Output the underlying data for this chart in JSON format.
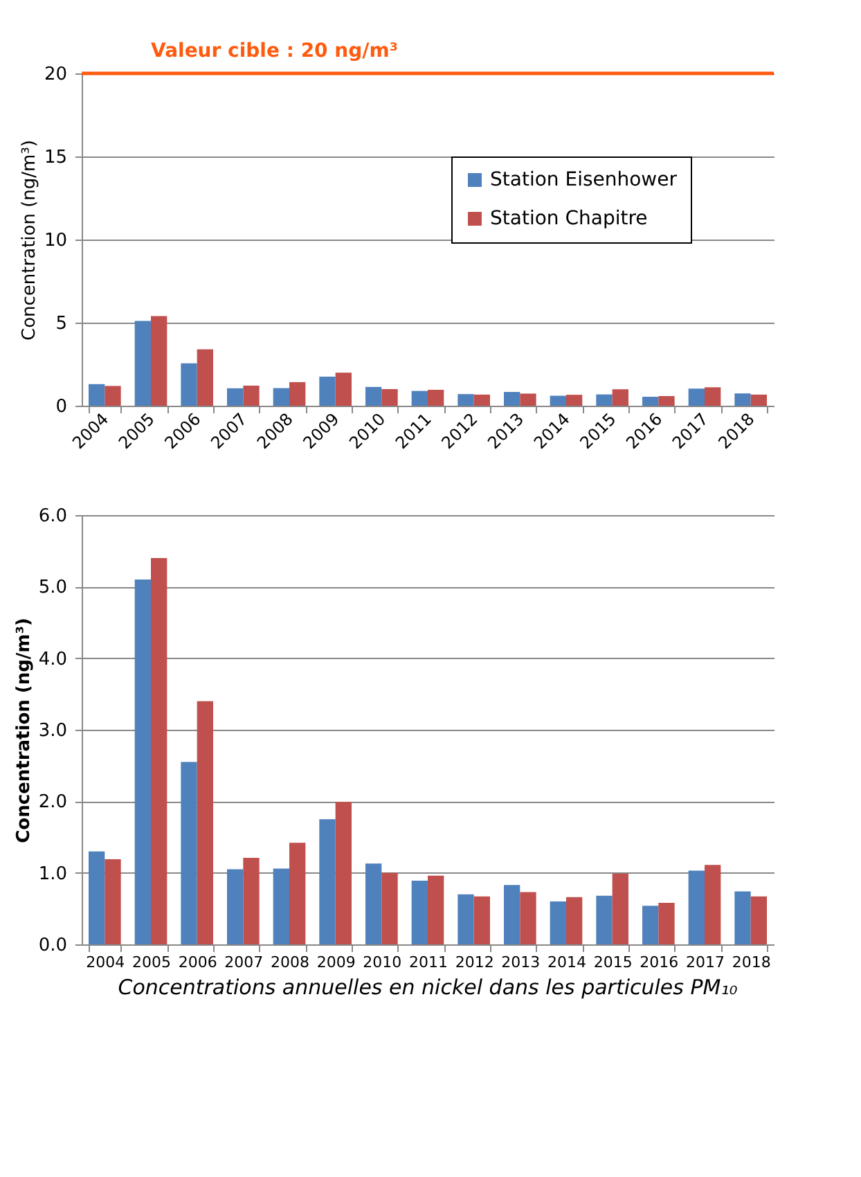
{
  "chart_data": [
    {
      "type": "bar",
      "ylabel": "Concentration (ng/m³)",
      "categories": [
        "2004",
        "2005",
        "2006",
        "2007",
        "2008",
        "2009",
        "2010",
        "2011",
        "2012",
        "2013",
        "2014",
        "2015",
        "2016",
        "2017",
        "2018"
      ],
      "series": [
        {
          "name": "Station Eisenhower",
          "color": "#4f81bd",
          "values": [
            1.3,
            5.1,
            2.55,
            1.05,
            1.06,
            1.75,
            1.13,
            0.89,
            0.7,
            0.83,
            0.6,
            0.68,
            0.54,
            1.03,
            0.74
          ]
        },
        {
          "name": "Station Chapitre",
          "color": "#c0504d",
          "values": [
            1.19,
            5.4,
            3.4,
            1.21,
            1.42,
            1.99,
            1.0,
            0.96,
            0.67,
            0.73,
            0.66,
            0.99,
            0.58,
            1.11,
            0.67
          ]
        }
      ],
      "ylim": [
        0,
        20
      ],
      "yticks": [
        0,
        5,
        10,
        15,
        20
      ],
      "grid": "y",
      "legend": "top right",
      "ref_lines": [
        {
          "axis": "y",
          "value": 20,
          "label": "Valeur cible : 20 ng/m³",
          "color": "#ff5b0f"
        }
      ]
    },
    {
      "type": "bar",
      "ylabel": "Concentration (ng/m³)",
      "categories": [
        "2004",
        "2005",
        "2006",
        "2007",
        "2008",
        "2009",
        "2010",
        "2011",
        "2012",
        "2013",
        "2014",
        "2015",
        "2016",
        "2017",
        "2018"
      ],
      "series": [
        {
          "name": "Station Eisenhower",
          "color": "#4f81bd",
          "values": [
            1.3,
            5.1,
            2.55,
            1.05,
            1.06,
            1.75,
            1.13,
            0.89,
            0.7,
            0.83,
            0.6,
            0.68,
            0.54,
            1.03,
            0.74
          ]
        },
        {
          "name": "Station Chapitre",
          "color": "#c0504d",
          "values": [
            1.19,
            5.4,
            3.4,
            1.21,
            1.42,
            1.99,
            1.0,
            0.96,
            0.67,
            0.73,
            0.66,
            0.99,
            0.58,
            1.11,
            0.67
          ]
        }
      ],
      "ylim": [
        0,
        6
      ],
      "yticks": [
        {
          "value": 0,
          "label": "0.0"
        },
        {
          "value": 1,
          "label": "1.0"
        },
        {
          "value": 2,
          "label": "2.0"
        },
        {
          "value": 3,
          "label": "3.0"
        },
        {
          "value": 4,
          "label": "4.0"
        },
        {
          "value": 5,
          "label": "5.0"
        },
        {
          "value": 6,
          "label": "6.0"
        }
      ],
      "grid": "y",
      "legend": "top right",
      "annotations": [
        "Concentrations annuelles en nickel dans les particules PM₁₀"
      ]
    }
  ]
}
